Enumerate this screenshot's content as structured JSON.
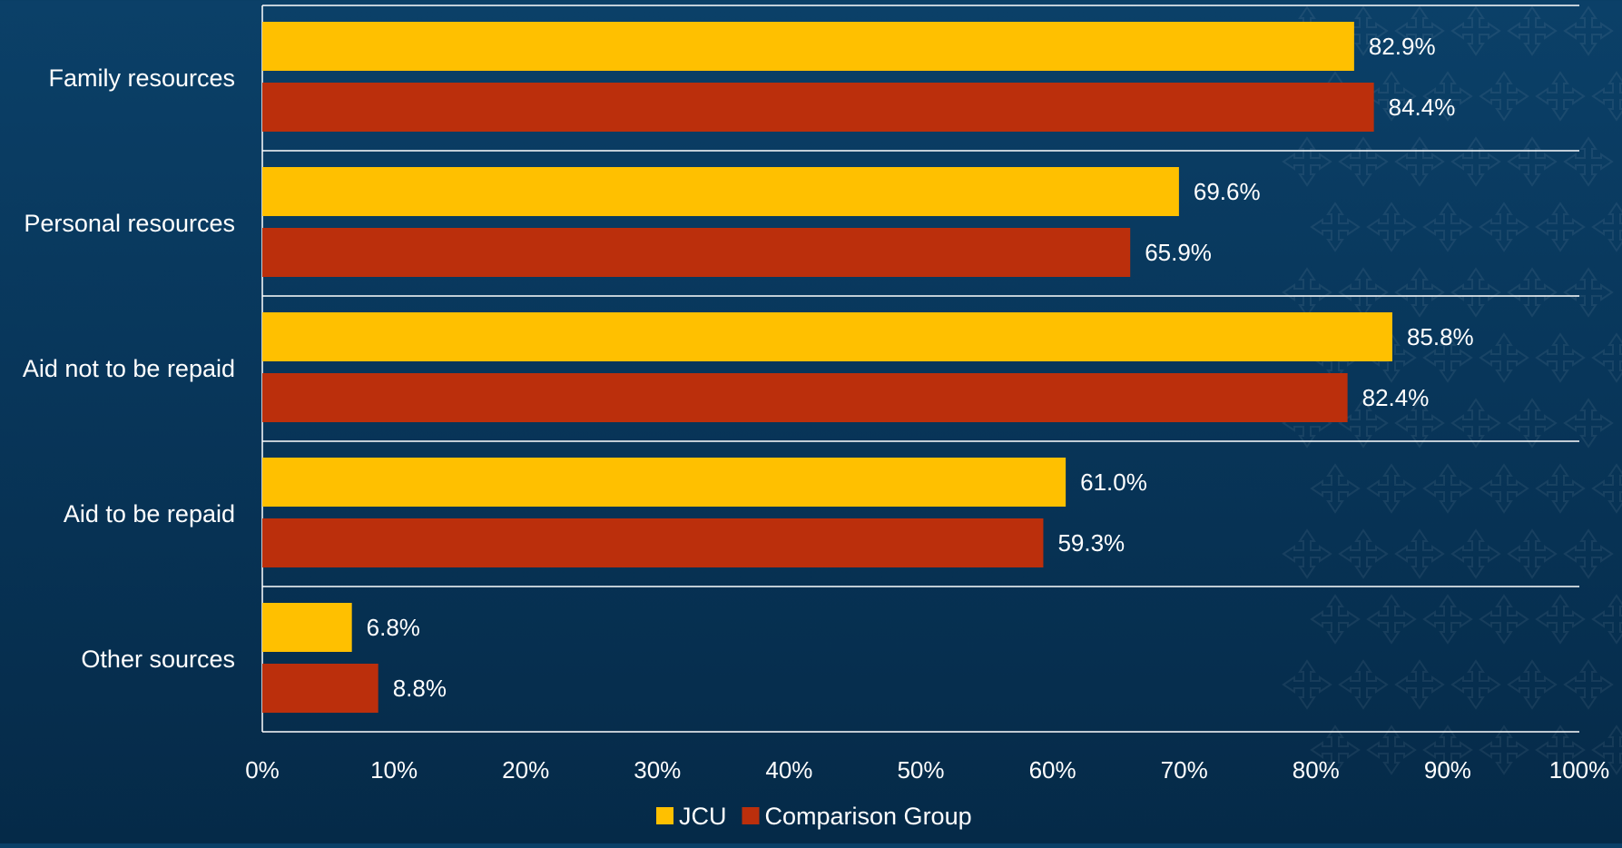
{
  "chart_data": {
    "type": "bar",
    "orientation": "horizontal",
    "title": "",
    "xlabel": "",
    "ylabel": "",
    "categories": [
      "Family resources",
      "Personal resources",
      "Aid not to be repaid",
      "Aid to be repaid",
      "Other sources"
    ],
    "series": [
      {
        "name": "JCU",
        "color": "#ffc000",
        "values": [
          82.9,
          69.6,
          85.8,
          61.0,
          6.8
        ],
        "labels": [
          "82.9%",
          "69.6%",
          "85.8%",
          "61.0%",
          "6.8%"
        ]
      },
      {
        "name": "Comparison Group",
        "color": "#bb2f0c",
        "values": [
          84.4,
          65.9,
          82.4,
          59.3,
          8.8
        ],
        "labels": [
          "84.4%",
          "65.9%",
          "82.4%",
          "59.3%",
          "8.8%"
        ]
      }
    ],
    "xlim": [
      0,
      100
    ],
    "xticks": [
      0,
      10,
      20,
      30,
      40,
      50,
      60,
      70,
      80,
      90,
      100
    ],
    "xtick_labels": [
      "0%",
      "10%",
      "20%",
      "30%",
      "40%",
      "50%",
      "60%",
      "70%",
      "80%",
      "90%",
      "100%"
    ],
    "grid": "horizontal separators between categories",
    "legend_position": "bottom-center"
  }
}
